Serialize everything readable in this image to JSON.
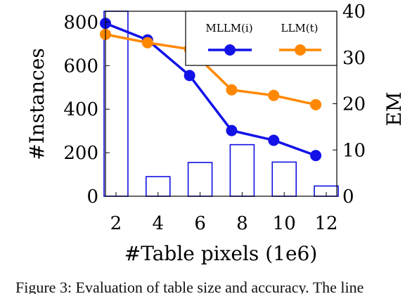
{
  "chart_data": {
    "type": "bar+line",
    "x_axis": {
      "label": "#Table pixels (1e6)",
      "ticks": [
        2,
        4,
        6,
        8,
        10,
        12
      ],
      "range": [
        1.5,
        12.5
      ]
    },
    "y_left": {
      "label": "#Instances",
      "ticks": [
        0,
        200,
        400,
        600,
        800
      ],
      "range": [
        0,
        850
      ]
    },
    "y_right": {
      "label": "EM",
      "ticks": [
        0,
        10,
        20,
        30,
        40
      ],
      "range": [
        0,
        40
      ]
    },
    "bars": {
      "axis": "left",
      "x": [
        2,
        4,
        6,
        8,
        10,
        12
      ],
      "values": [
        850,
        90,
        155,
        237,
        157,
        47
      ],
      "color": "#1010e0"
    },
    "series": [
      {
        "name": "MLLM(i)",
        "axis": "right",
        "x": [
          1.5,
          3.5,
          5.5,
          7.5,
          9.5,
          11.5
        ],
        "values": [
          37.4,
          33.8,
          26.1,
          14.2,
          12.1,
          8.8
        ],
        "color": "#1212e8"
      },
      {
        "name": "LLM(t)",
        "axis": "right",
        "x": [
          1.5,
          3.5,
          5.5,
          7.5,
          9.5,
          11.5
        ],
        "values": [
          35.0,
          33.2,
          31.8,
          23.0,
          21.8,
          19.8
        ],
        "color": "#ff8800"
      }
    ],
    "legend": {
      "placement": "top-right",
      "columns": 2
    }
  },
  "caption": "Figure 3: Evaluation of table size and accuracy. The line"
}
